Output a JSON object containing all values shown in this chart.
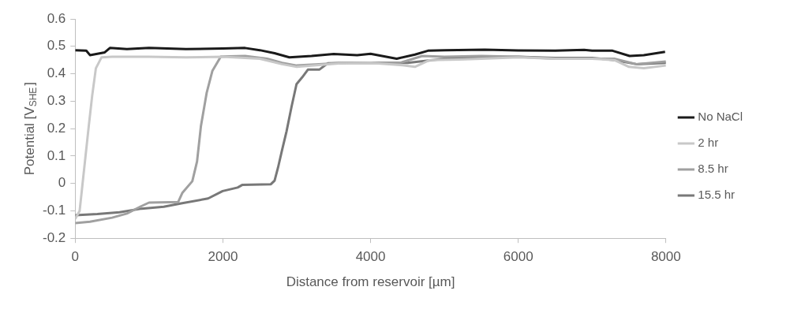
{
  "chart_data": {
    "type": "line",
    "xlabel": "Distance from reservoir [µm]",
    "ylabel": "Potential [V$_{SHE}$]",
    "xlim": [
      0,
      8000
    ],
    "xticks": [
      0,
      2000,
      4000,
      6000,
      8000
    ],
    "ylim": [
      -0.2,
      0.6
    ],
    "yticks": [
      -0.2,
      -0.1,
      0,
      0.1,
      0.2,
      0.3,
      0.4,
      0.5,
      0.6
    ],
    "grid": false,
    "legend": "right",
    "marker": "none",
    "line_style": "solid",
    "series": [
      {
        "name": "No NaCl",
        "color": "#1a1a1a",
        "x": [
          0,
          150,
          200,
          400,
          470,
          700,
          1000,
          1500,
          2000,
          2300,
          2500,
          2700,
          2900,
          3200,
          3500,
          3818,
          4000,
          4354,
          4600,
          4777,
          5000,
          5546,
          6000,
          6500,
          6892,
          7000,
          7277,
          7508,
          7700,
          7988
        ],
        "values": [
          0.486,
          0.484,
          0.468,
          0.478,
          0.494,
          0.49,
          0.494,
          0.49,
          0.492,
          0.494,
          0.486,
          0.475,
          0.46,
          0.465,
          0.472,
          0.468,
          0.473,
          0.455,
          0.47,
          0.484,
          0.486,
          0.488,
          0.485,
          0.484,
          0.487,
          0.484,
          0.484,
          0.465,
          0.468,
          0.48
        ]
      },
      {
        "name": "2 hr",
        "color": "#c8c8c8",
        "x": [
          0,
          60,
          100,
          140,
          184,
          230,
          280,
          357,
          500,
          1000,
          1500,
          2000,
          2500,
          2800,
          3000,
          3300,
          3600,
          4000,
          4400,
          4600,
          4800,
          5200,
          5500,
          6000,
          6500,
          7000,
          7300,
          7500,
          7700,
          8000
        ],
        "values": [
          -0.13,
          -0.1,
          0.0,
          0.1,
          0.21,
          0.32,
          0.42,
          0.46,
          0.462,
          0.462,
          0.46,
          0.462,
          0.455,
          0.435,
          0.425,
          0.432,
          0.438,
          0.44,
          0.432,
          0.425,
          0.45,
          0.452,
          0.455,
          0.46,
          0.455,
          0.455,
          0.45,
          0.425,
          0.42,
          0.43
        ]
      },
      {
        "name": "8.5 hr",
        "color": "#a0a0a0",
        "x": [
          0,
          200,
          500,
          700,
          896,
          1000,
          1394,
          1450,
          1586,
          1650,
          1703,
          1780,
          1857,
          1972,
          2300,
          2600,
          2800,
          3000,
          3300,
          3600,
          4000,
          4400,
          4700,
          5000,
          5500,
          6000,
          6500,
          7000,
          7300,
          7600,
          8000
        ],
        "values": [
          -0.145,
          -0.14,
          -0.125,
          -0.11,
          -0.083,
          -0.07,
          -0.068,
          -0.035,
          0.008,
          0.08,
          0.21,
          0.33,
          0.41,
          0.463,
          0.465,
          0.455,
          0.44,
          0.43,
          0.435,
          0.44,
          0.44,
          0.44,
          0.465,
          0.462,
          0.465,
          0.462,
          0.455,
          0.455,
          0.455,
          0.435,
          0.445
        ]
      },
      {
        "name": "15.5 hr",
        "color": "#787878",
        "x": [
          0,
          300,
          600,
          900,
          1200,
          1435,
          1800,
          1997,
          2200,
          2266,
          2650,
          2700,
          2747,
          2800,
          2862,
          2930,
          2997,
          3074,
          3151,
          3305,
          3420,
          3700,
          4000,
          4500,
          5000,
          5500,
          6000,
          6500,
          7000,
          7300,
          7600,
          8000
        ],
        "values": [
          -0.116,
          -0.112,
          -0.105,
          -0.092,
          -0.085,
          -0.073,
          -0.055,
          -0.028,
          -0.015,
          -0.005,
          -0.003,
          0.01,
          0.058,
          0.12,
          0.19,
          0.28,
          0.362,
          0.387,
          0.415,
          0.415,
          0.438,
          0.44,
          0.44,
          0.44,
          0.455,
          0.46,
          0.462,
          0.458,
          0.458,
          0.45,
          0.435,
          0.44
        ]
      }
    ]
  }
}
